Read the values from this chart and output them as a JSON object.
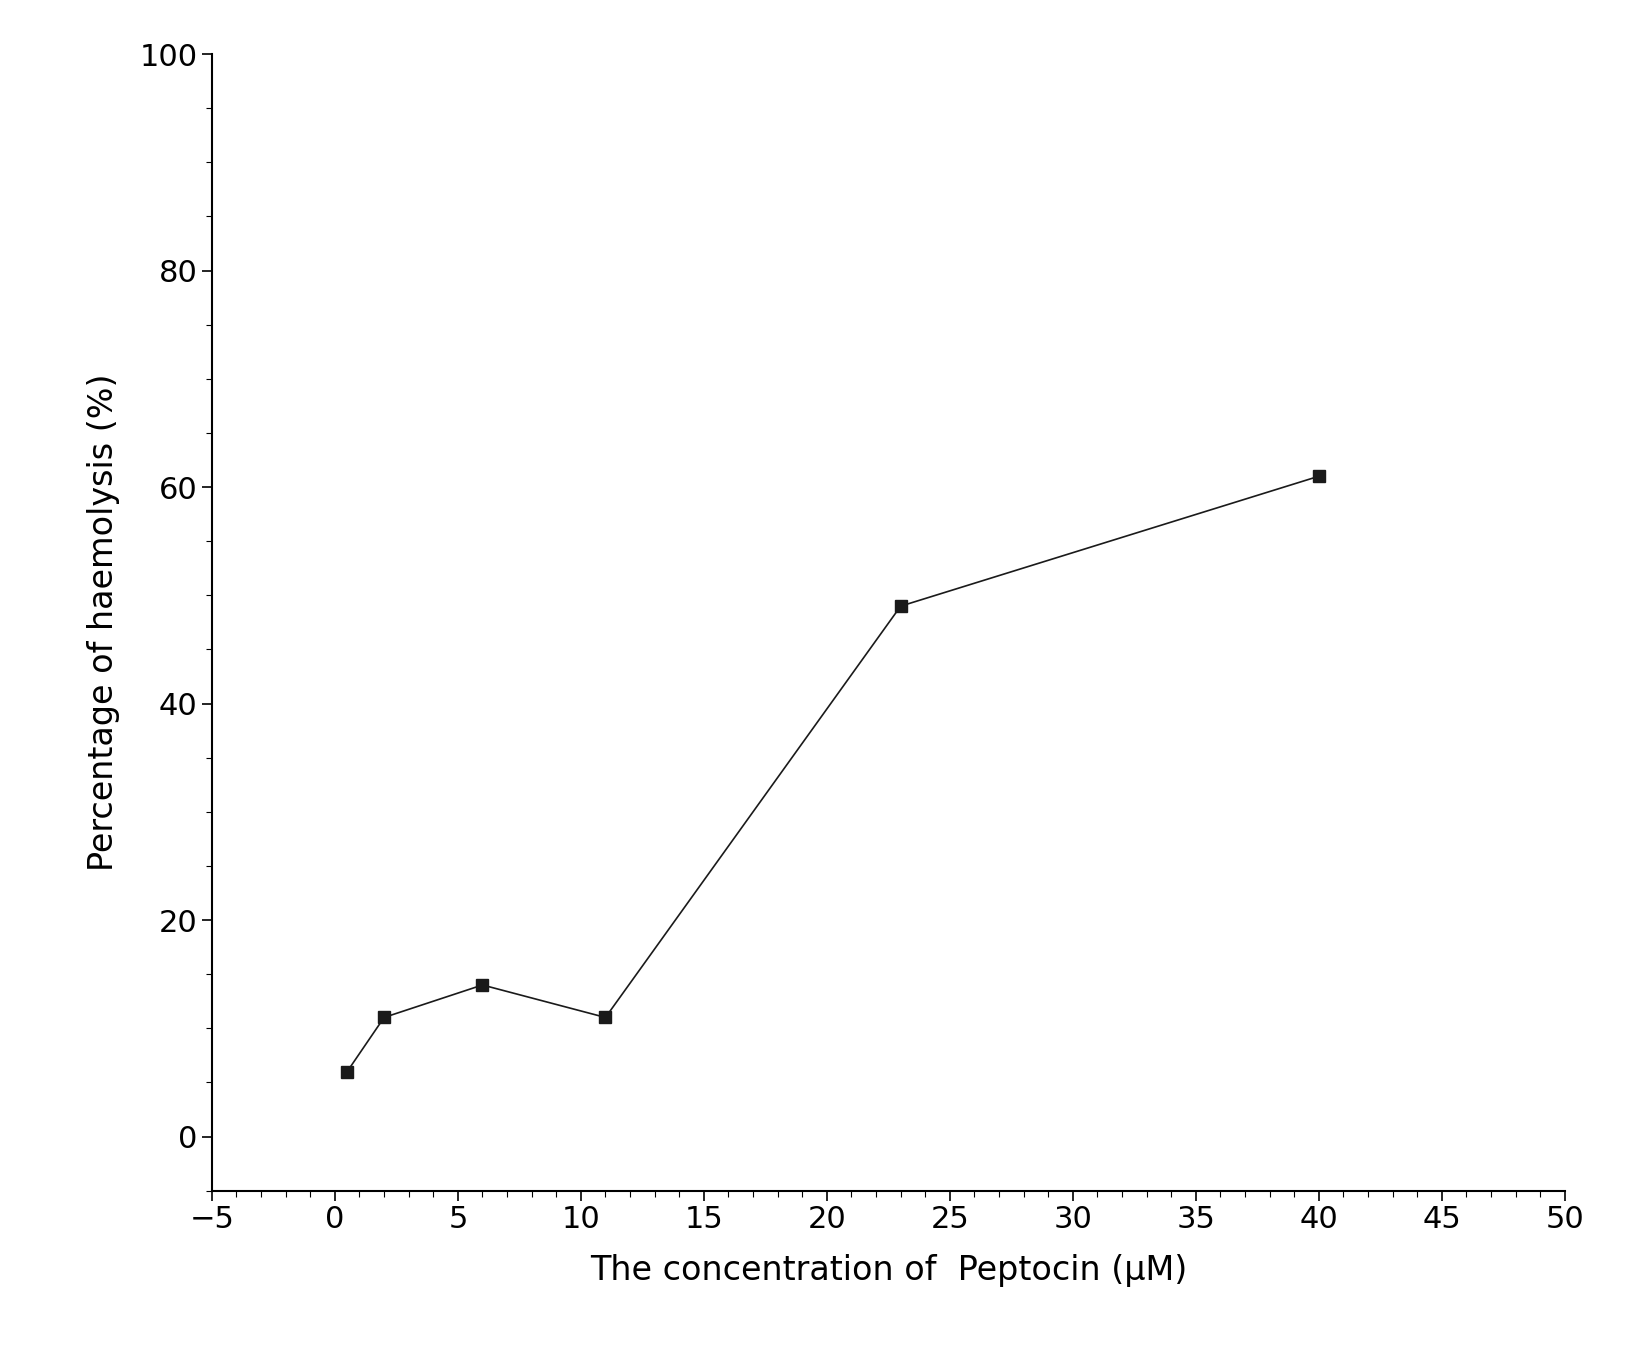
{
  "x_values": [
    0.5,
    2,
    6,
    11,
    23,
    40
  ],
  "y_values": [
    6,
    11,
    14,
    11,
    49,
    61
  ],
  "xlabel": "The concentration of  Peptocin (μM)",
  "ylabel": "Percentage of haemolysis (%)",
  "xlim": [
    -5,
    50
  ],
  "ylim": [
    -5,
    100
  ],
  "xticks": [
    -5,
    0,
    5,
    10,
    15,
    20,
    25,
    30,
    35,
    40,
    45,
    50
  ],
  "yticks": [
    0,
    20,
    40,
    60,
    80,
    100
  ],
  "marker": "s",
  "marker_color": "#1a1a1a",
  "line_color": "#1a1a1a",
  "marker_size": 9,
  "line_width": 1.2,
  "xlabel_fontsize": 24,
  "ylabel_fontsize": 24,
  "tick_fontsize": 22,
  "background_color": "#ffffff"
}
